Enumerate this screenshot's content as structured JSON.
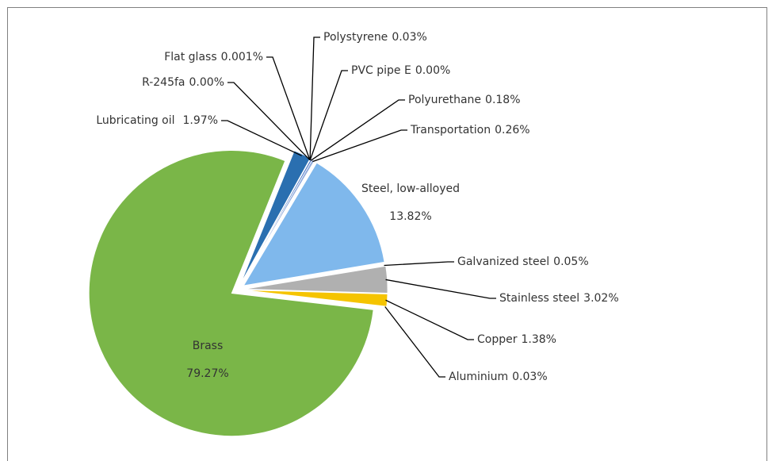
{
  "chart_data": {
    "type": "pie",
    "categories": [
      "Lubricating oil",
      "R-245fa",
      "Flat glass",
      "Polystyrene",
      "PVC pipe E",
      "Polyurethane",
      "Transportation",
      "Steel, low-alloyed",
      "Galvanized steel",
      "Stainless steel",
      "Copper",
      "Aluminium",
      "Brass"
    ],
    "values": [
      1.97,
      0.0,
      0.001,
      0.03,
      0.0,
      0.18,
      0.26,
      13.82,
      0.05,
      3.02,
      1.38,
      0.03,
      79.27
    ],
    "value_labels": [
      "1.97%",
      "0.00%",
      "0.001%",
      "0.03%",
      "0.00%",
      "0.18%",
      "0.26%",
      "13.82%",
      "0.05%",
      "3.02%",
      "1.38%",
      "0.03%",
      "79.27%"
    ],
    "colors": [
      "#2a6fb0",
      "#9dc3e6",
      "#bdd7ee",
      "#5b9bd5",
      "#deebf7",
      "#4472c4",
      "#8faadc",
      "#7fb8ec",
      "#f2f2f2",
      "#b0b0b0",
      "#f5c400",
      "#ffd966",
      "#7ab648"
    ]
  }
}
